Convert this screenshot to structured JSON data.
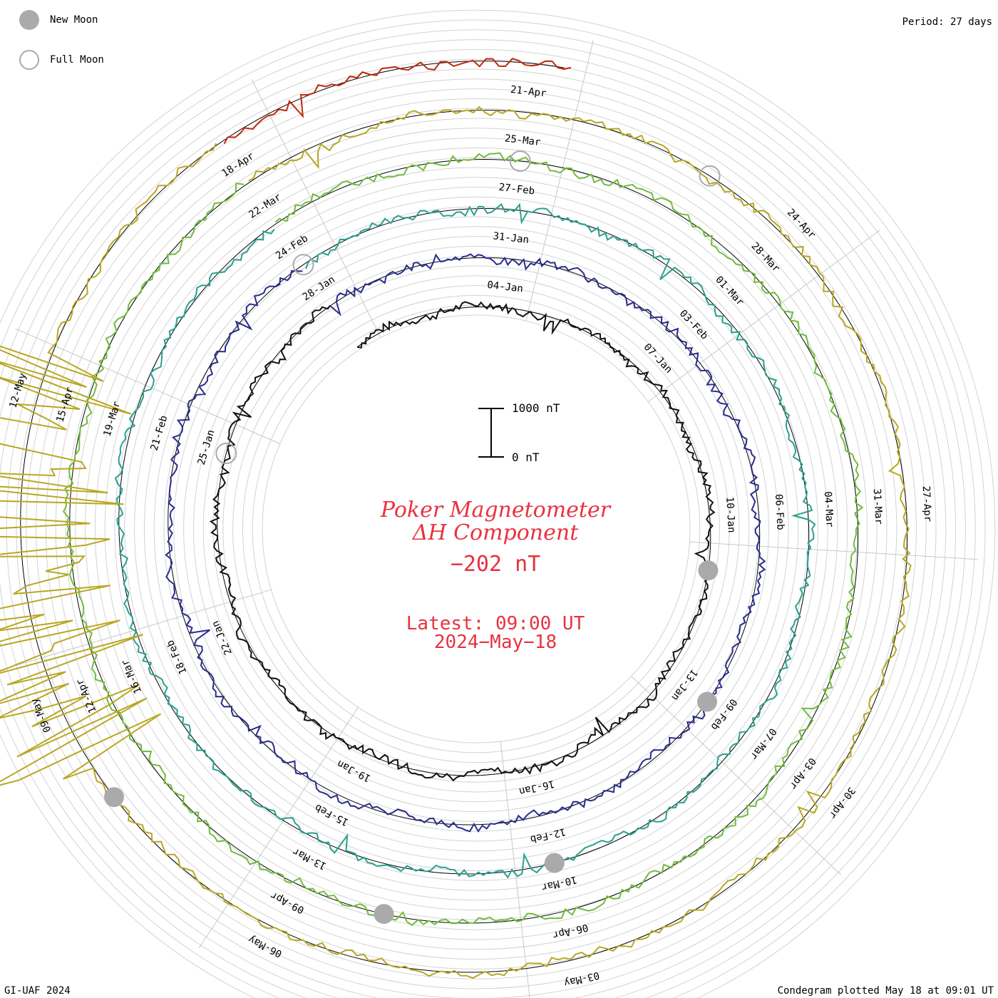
{
  "legend": {
    "new_moon_label": "New Moon",
    "full_moon_label": "Full Moon",
    "new_moon_color": "#aaaaaa",
    "full_moon_color": "#aaaaaa"
  },
  "period_label": "Period: 27 days",
  "title_line1": "Poker Magnetometer",
  "title_line2": "ΔH Component",
  "current_value": "−202 nT",
  "latest_line1": "Latest: 09:00 UT",
  "latest_line2": "2024−May−18",
  "scale": {
    "top_label": "1000 nT",
    "bottom_label": "0 nT"
  },
  "footer_left": "GI-UAF 2024",
  "footer_right": "Condegram plotted May 18 at 09:01 UT",
  "text_color": "#e83240",
  "chart_data": {
    "type": "line",
    "projection": "polar spiral condegram",
    "period_days": 27,
    "start_date": "2024-01-01",
    "end_date": "2024-05-18",
    "latest_value_nT": -202,
    "scale_nT": [
      0,
      1000
    ],
    "turns": [
      {
        "color": "#111111",
        "date_labels": [
          "04-Jan",
          "07-Jan",
          "10-Jan",
          "13-Jan",
          "16-Jan",
          "19-Jan",
          "22-Jan",
          "25-Jan",
          "28-Jan"
        ]
      },
      {
        "color": "#2a2a8f",
        "date_labels": [
          "31-Jan",
          "03-Feb",
          "06-Feb",
          "09-Feb",
          "12-Feb",
          "15-Feb",
          "18-Feb",
          "21-Feb",
          "24-Feb"
        ]
      },
      {
        "color": "#2aa08e",
        "date_labels": [
          "27-Feb",
          "01-Mar",
          "04-Mar",
          "07-Mar",
          "10-Mar",
          "13-Mar",
          "16-Mar",
          "19-Mar",
          "22-Mar"
        ]
      },
      {
        "color": "#72bb3c",
        "date_labels": [
          "25-Mar",
          "28-Mar",
          "31-Mar",
          "03-Apr",
          "06-Apr",
          "09-Apr",
          "12-Apr",
          "15-Apr",
          "18-Apr"
        ]
      },
      {
        "color": "#b8a722",
        "date_labels": [
          "21-Apr",
          "24-Apr",
          "27-Apr",
          "30-Apr",
          "03-May",
          "06-May",
          "09-May",
          "12-May"
        ]
      },
      {
        "color": "#c0280e",
        "date_labels": []
      }
    ],
    "events": [
      {
        "type": "New Moon",
        "date": "2024-01-11"
      },
      {
        "type": "Full Moon",
        "date": "2024-01-25"
      },
      {
        "type": "New Moon",
        "date": "2024-02-09"
      },
      {
        "type": "Full Moon",
        "date": "2024-02-24"
      },
      {
        "type": "New Moon",
        "date": "2024-03-10"
      },
      {
        "type": "Full Moon",
        "date": "2024-03-25"
      },
      {
        "type": "New Moon",
        "date": "2024-04-08"
      },
      {
        "type": "Full Moon",
        "date": "2024-04-23"
      },
      {
        "type": "New Moon",
        "date": "2024-05-08"
      }
    ]
  }
}
